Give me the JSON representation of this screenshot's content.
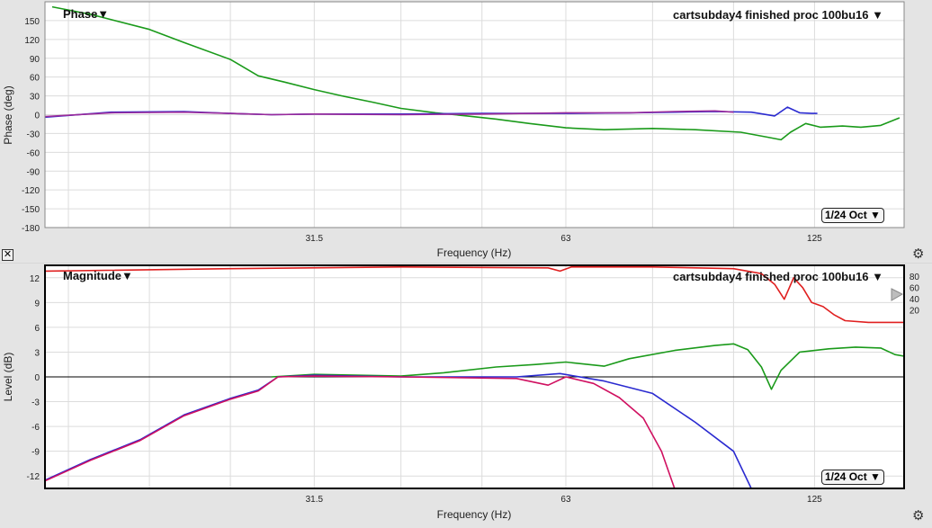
{
  "phase_panel": {
    "title": "Phase▼",
    "measurement": "cartsubday4 finished proc 100bu16 ▼",
    "smoothing": "1/24 Oct ▼",
    "xlabel": "Frequency (Hz)",
    "ylabel": "Phase (deg)",
    "close_glyph": "✕",
    "gear_glyph": "⚙"
  },
  "magnitude_panel": {
    "title": "Magnitude▼",
    "measurement": "cartsubday4 finished proc 100bu16 ▼",
    "smoothing": "1/24 Oct ▼",
    "xlabel": "Frequency (Hz)",
    "ylabel": "Level (dB)",
    "gear_glyph": "⚙"
  },
  "colors": {
    "green": "#1a9a1a",
    "blue": "#2a2ad0",
    "purple": "#9a2a9a",
    "crimson": "#d01060",
    "red": "#e02020"
  },
  "chart_data": [
    {
      "type": "line",
      "title": "Phase",
      "xlabel": "Frequency (Hz)",
      "ylabel": "Phase (deg)",
      "x_scale": "log",
      "xlim": [
        15,
        160
      ],
      "ylim": [
        -180,
        180
      ],
      "x_ticks": [
        31.5,
        63,
        125
      ],
      "x_tick_labels": [
        "31.5",
        "63",
        "125"
      ],
      "y_ticks": [
        150,
        120,
        90,
        60,
        30,
        0,
        -30,
        -60,
        -90,
        -120,
        -150,
        -180
      ],
      "y_tick_labels": [
        "150",
        "120",
        "90",
        "60",
        "30",
        "0",
        "-30",
        "-60",
        "-90",
        "-120",
        "-150",
        "-180"
      ],
      "grid": true,
      "series": [
        {
          "color": "green",
          "points": [
            [
              15.3,
              172
            ],
            [
              17,
              160
            ],
            [
              20,
              136
            ],
            [
              22,
              115
            ],
            [
              25,
              88
            ],
            [
              27,
              62
            ],
            [
              29,
              52
            ],
            [
              31.5,
              40
            ],
            [
              34,
              30
            ],
            [
              37,
              20
            ],
            [
              40,
              10
            ],
            [
              44,
              3
            ],
            [
              48,
              -2
            ],
            [
              52,
              -7
            ],
            [
              57,
              -14
            ],
            [
              63,
              -21
            ],
            [
              70,
              -24
            ],
            [
              80,
              -22
            ],
            [
              90,
              -24
            ],
            [
              102,
              -28
            ],
            [
              110,
              -36
            ],
            [
              114,
              -40
            ],
            [
              117,
              -28
            ],
            [
              122,
              -14
            ],
            [
              127,
              -20
            ],
            [
              135,
              -18
            ],
            [
              142,
              -20
            ],
            [
              150,
              -17
            ],
            [
              158,
              -5
            ]
          ]
        },
        {
          "color": "blue",
          "points": [
            [
              15,
              -4
            ],
            [
              18,
              4
            ],
            [
              22,
              5
            ],
            [
              25,
              2
            ],
            [
              28,
              0
            ],
            [
              31.5,
              1
            ],
            [
              40,
              1
            ],
            [
              50,
              2
            ],
            [
              63,
              2
            ],
            [
              75,
              3
            ],
            [
              85,
              4
            ],
            [
              95,
              5
            ],
            [
              105,
              4
            ],
            [
              112,
              -2
            ],
            [
              116,
              12
            ],
            [
              120,
              3
            ],
            [
              124,
              2
            ],
            [
              126,
              2
            ]
          ]
        },
        {
          "color": "purple",
          "points": [
            [
              15,
              -3
            ],
            [
              18,
              3
            ],
            [
              22,
              4
            ],
            [
              25,
              2
            ],
            [
              28,
              0
            ],
            [
              31.5,
              1
            ],
            [
              40,
              0
            ],
            [
              50,
              1
            ],
            [
              63,
              3
            ],
            [
              75,
              3
            ],
            [
              85,
              5
            ],
            [
              95,
              6
            ],
            [
              100,
              4
            ]
          ]
        }
      ]
    },
    {
      "type": "line",
      "title": "Magnitude",
      "xlabel": "Frequency (Hz)",
      "ylabel": "Level (dB)",
      "x_scale": "log",
      "xlim": [
        15,
        160
      ],
      "ylim": [
        -13.5,
        13.5
      ],
      "x_ticks": [
        31.5,
        63,
        125
      ],
      "x_tick_labels": [
        "31.5",
        "63",
        "125"
      ],
      "y_ticks": [
        12,
        9,
        6,
        3,
        0,
        -3,
        -6,
        -9,
        -12
      ],
      "y_tick_labels": [
        "12",
        "9",
        "6",
        "3",
        "0",
        "-3",
        "-6",
        "-9",
        "-12"
      ],
      "secondary_ticks": [
        "80",
        "60",
        "40",
        "20"
      ],
      "grid": true,
      "series": [
        {
          "color": "red",
          "points": [
            [
              15,
              12.8
            ],
            [
              25,
              13.1
            ],
            [
              40,
              13.3
            ],
            [
              60,
              13.2
            ],
            [
              62,
              12.8
            ],
            [
              64,
              13.3
            ],
            [
              80,
              13.3
            ],
            [
              100,
              13.1
            ],
            [
              108,
              12.5
            ],
            [
              112,
              11.2
            ],
            [
              115,
              9.4
            ],
            [
              118,
              12.0
            ],
            [
              121,
              10.8
            ],
            [
              124,
              9.0
            ],
            [
              128,
              8.5
            ],
            [
              132,
              7.5
            ],
            [
              136,
              6.8
            ],
            [
              145,
              6.6
            ],
            [
              160,
              6.6
            ]
          ]
        },
        {
          "color": "green",
          "points": [
            [
              28,
              0
            ],
            [
              31.5,
              0.3
            ],
            [
              40,
              0.1
            ],
            [
              45,
              0.5
            ],
            [
              52,
              1.2
            ],
            [
              58,
              1.5
            ],
            [
              63,
              1.8
            ],
            [
              70,
              1.3
            ],
            [
              75,
              2.2
            ],
            [
              85,
              3.2
            ],
            [
              95,
              3.8
            ],
            [
              100,
              4.0
            ],
            [
              104,
              3.3
            ],
            [
              108,
              1.2
            ],
            [
              111,
              -1.5
            ],
            [
              114,
              0.8
            ],
            [
              120,
              3.0
            ],
            [
              130,
              3.4
            ],
            [
              140,
              3.6
            ],
            [
              150,
              3.5
            ],
            [
              156,
              2.7
            ],
            [
              160,
              2.5
            ]
          ]
        },
        {
          "color": "blue",
          "points": [
            [
              15,
              -12.5
            ],
            [
              17,
              -10
            ],
            [
              19.5,
              -7.6
            ],
            [
              22,
              -4.6
            ],
            [
              25,
              -2.6
            ],
            [
              27,
              -1.6
            ],
            [
              28.5,
              0
            ],
            [
              31.5,
              0.2
            ],
            [
              40,
              0
            ],
            [
              55,
              0
            ],
            [
              62,
              0.4
            ],
            [
              70,
              -0.5
            ],
            [
              80,
              -2.0
            ],
            [
              90,
              -5.5
            ],
            [
              100,
              -9.0
            ],
            [
              105,
              -13.5
            ]
          ]
        },
        {
          "color": "crimson",
          "points": [
            [
              15,
              -12.6
            ],
            [
              17,
              -10.1
            ],
            [
              19.5,
              -7.7
            ],
            [
              22,
              -4.7
            ],
            [
              25,
              -2.7
            ],
            [
              27,
              -1.7
            ],
            [
              28.5,
              0
            ],
            [
              31.5,
              0.1
            ],
            [
              40,
              0
            ],
            [
              55,
              -0.2
            ],
            [
              60,
              -1.0
            ],
            [
              63,
              0
            ],
            [
              68,
              -0.8
            ],
            [
              73,
              -2.5
            ],
            [
              78,
              -5.0
            ],
            [
              82,
              -9.0
            ],
            [
              85,
              -13.5
            ]
          ]
        }
      ]
    }
  ]
}
